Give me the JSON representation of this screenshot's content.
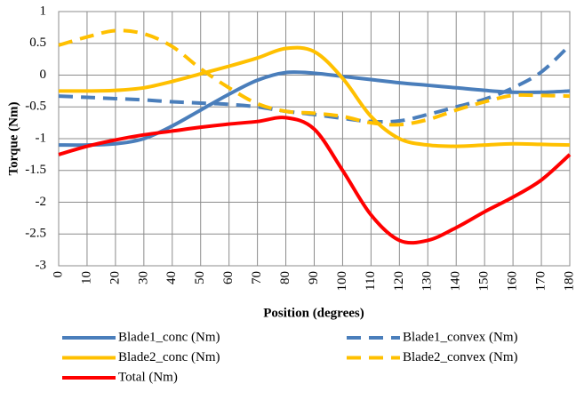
{
  "chart_data": {
    "type": "line",
    "xlabel": "Position (degrees)",
    "ylabel": "Torque (Nm)",
    "x": [
      0,
      10,
      20,
      30,
      40,
      50,
      60,
      70,
      80,
      90,
      100,
      110,
      120,
      130,
      140,
      150,
      160,
      170,
      180
    ],
    "xlim": [
      0,
      180
    ],
    "xticks": [
      0,
      10,
      20,
      30,
      40,
      50,
      60,
      70,
      80,
      90,
      100,
      110,
      120,
      130,
      140,
      150,
      160,
      170,
      180
    ],
    "ylim": [
      -3,
      1
    ],
    "yticks": [
      1,
      0.5,
      0,
      -0.5,
      -1,
      -1.5,
      -2,
      -2.5,
      -3
    ],
    "grid": true,
    "legend": "bottom",
    "smooth": true,
    "series": [
      {
        "name": "Blade1_conc (Nm)",
        "color": "#4a7ebb",
        "dashed": false,
        "values": [
          -1.1,
          -1.1,
          -1.08,
          -1.0,
          -0.8,
          -0.55,
          -0.3,
          -0.08,
          0.04,
          0.03,
          -0.02,
          -0.07,
          -0.12,
          -0.16,
          -0.2,
          -0.24,
          -0.27,
          -0.27,
          -0.25
        ]
      },
      {
        "name": "Blade1_convex (Nm)",
        "color": "#4a7ebb",
        "dashed": true,
        "values": [
          -0.33,
          -0.35,
          -0.37,
          -0.39,
          -0.42,
          -0.44,
          -0.46,
          -0.5,
          -0.57,
          -0.62,
          -0.68,
          -0.73,
          -0.72,
          -0.62,
          -0.5,
          -0.38,
          -0.2,
          0.05,
          0.47
        ]
      },
      {
        "name": "Blade2_conc (Nm)",
        "color": "#ffc000",
        "dashed": false,
        "values": [
          -0.25,
          -0.25,
          -0.24,
          -0.2,
          -0.1,
          0.02,
          0.14,
          0.27,
          0.42,
          0.37,
          -0.05,
          -0.65,
          -1.0,
          -1.1,
          -1.12,
          -1.1,
          -1.08,
          -1.09,
          -1.1
        ]
      },
      {
        "name": "Blade2_convex (Nm)",
        "color": "#ffc000",
        "dashed": true,
        "values": [
          0.47,
          0.6,
          0.7,
          0.65,
          0.45,
          0.1,
          -0.2,
          -0.45,
          -0.57,
          -0.6,
          -0.65,
          -0.75,
          -0.78,
          -0.7,
          -0.55,
          -0.42,
          -0.32,
          -0.32,
          -0.33
        ]
      },
      {
        "name": "Total (Nm)",
        "color": "#ff0000",
        "dashed": false,
        "values": [
          -1.25,
          -1.12,
          -1.02,
          -0.94,
          -0.88,
          -0.82,
          -0.77,
          -0.73,
          -0.67,
          -0.85,
          -1.5,
          -2.2,
          -2.6,
          -2.6,
          -2.4,
          -2.15,
          -1.92,
          -1.65,
          -1.25
        ]
      }
    ]
  }
}
